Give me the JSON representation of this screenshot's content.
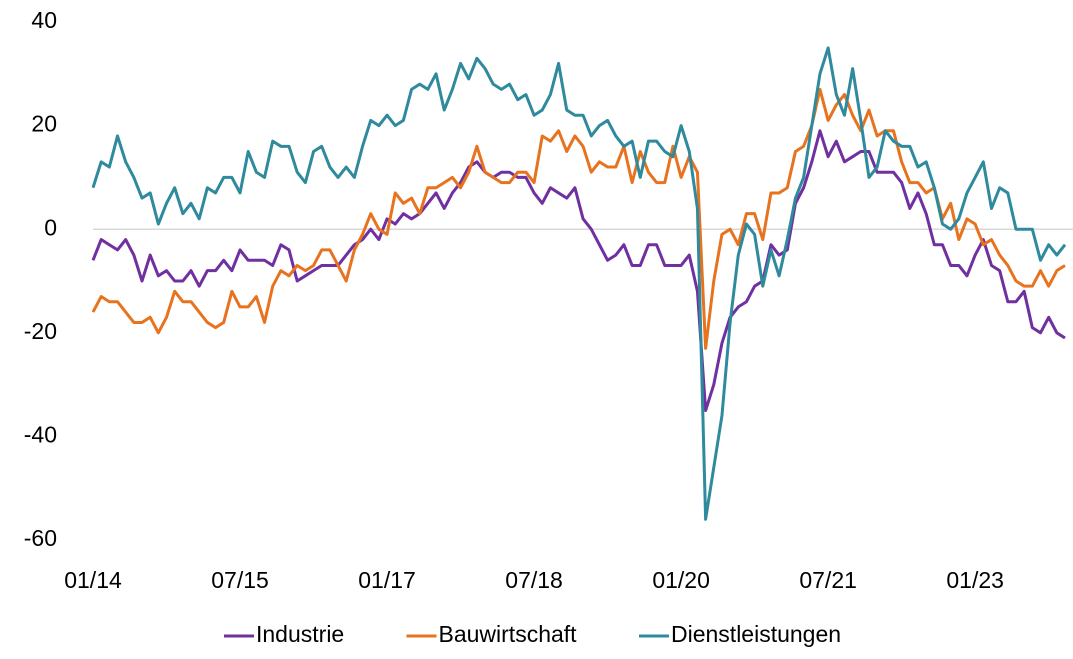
{
  "chart_data": {
    "type": "line",
    "categories": [
      "01/14",
      null,
      null,
      null,
      null,
      null,
      null,
      null,
      null,
      null,
      null,
      null,
      null,
      null,
      null,
      null,
      null,
      null,
      "07/15",
      null,
      null,
      null,
      null,
      null,
      null,
      null,
      null,
      null,
      null,
      null,
      null,
      null,
      null,
      null,
      null,
      null,
      "01/17",
      null,
      null,
      null,
      null,
      null,
      null,
      null,
      null,
      null,
      null,
      null,
      null,
      null,
      null,
      null,
      null,
      null,
      "07/18",
      null,
      null,
      null,
      null,
      null,
      null,
      null,
      null,
      null,
      null,
      null,
      null,
      null,
      null,
      null,
      null,
      null,
      "01/20",
      null,
      null,
      null,
      null,
      null,
      null,
      null,
      null,
      null,
      null,
      null,
      null,
      null,
      null,
      null,
      null,
      null,
      "07/21",
      null,
      null,
      null,
      null,
      null,
      null,
      null,
      null,
      null,
      null,
      null,
      null,
      null,
      null,
      null,
      null,
      null,
      "01/23",
      null,
      null,
      null,
      null,
      null,
      null,
      null,
      null,
      null,
      null,
      null
    ],
    "series": [
      {
        "name": "Industrie",
        "color": "#7030a0",
        "values": [
          -6,
          -2,
          -3,
          -4,
          -2,
          -5,
          -10,
          -5,
          -9,
          -8,
          -10,
          -10,
          -8,
          -11,
          -8,
          -8,
          -6,
          -8,
          -4,
          -6,
          -6,
          -6,
          -7,
          -3,
          -4,
          -10,
          -9,
          -8,
          -7,
          -7,
          -7,
          -5,
          -3,
          -2,
          0,
          -2,
          2,
          1,
          3,
          2,
          3,
          5,
          7,
          4,
          7,
          9,
          12,
          13,
          11,
          10,
          11,
          11,
          10,
          10,
          7,
          5,
          8,
          7,
          6,
          8,
          2,
          0,
          -3,
          -6,
          -5,
          -3,
          -7,
          -7,
          -3,
          -3,
          -7,
          -7,
          -7,
          -5,
          -12,
          -35,
          -30,
          -22,
          -17,
          -15,
          -14,
          -11,
          -10,
          -3,
          -5,
          -4,
          5,
          8,
          13,
          19,
          14,
          17,
          13,
          14,
          15,
          15,
          11,
          11,
          11,
          9,
          4,
          7,
          3,
          -3,
          -3,
          -7,
          -7,
          -9,
          -5,
          -2,
          -7,
          -8,
          -14,
          -14,
          -12,
          -19,
          -20,
          -17,
          -20,
          -21
        ]
      },
      {
        "name": "Bauwirtschaft",
        "color": "#e8731f",
        "values": [
          -16,
          -13,
          -14,
          -14,
          -16,
          -18,
          -18,
          -17,
          -20,
          -17,
          -12,
          -14,
          -14,
          -16,
          -18,
          -19,
          -18,
          -12,
          -15,
          -15,
          -13,
          -18,
          -11,
          -8,
          -9,
          -7,
          -8,
          -7,
          -4,
          -4,
          -7,
          -10,
          -4,
          -1,
          3,
          0,
          -1,
          7,
          5,
          6,
          3,
          8,
          8,
          9,
          10,
          8,
          11,
          16,
          11,
          10,
          9,
          9,
          11,
          11,
          9,
          18,
          17,
          19,
          15,
          18,
          16,
          11,
          13,
          12,
          12,
          16,
          9,
          15,
          11,
          9,
          9,
          16,
          10,
          14,
          11,
          -23,
          -10,
          -1,
          0,
          -3,
          3,
          3,
          -2,
          7,
          7,
          8,
          15,
          16,
          20,
          27,
          21,
          24,
          26,
          22,
          19,
          23,
          18,
          19,
          19,
          13,
          9,
          9,
          7,
          8,
          2,
          5,
          -2,
          2,
          1,
          -3,
          -2,
          -5,
          -7,
          -10,
          -11,
          -11,
          -8,
          -11,
          -8,
          -7
        ]
      },
      {
        "name": "Dienstleistungen",
        "color": "#2e8a9c",
        "values": [
          8,
          13,
          12,
          18,
          13,
          10,
          6,
          7,
          1,
          5,
          8,
          3,
          5,
          2,
          8,
          7,
          10,
          10,
          7,
          15,
          11,
          10,
          17,
          16,
          16,
          11,
          9,
          15,
          16,
          12,
          10,
          12,
          10,
          16,
          21,
          20,
          22,
          20,
          21,
          27,
          28,
          27,
          30,
          23,
          27,
          32,
          29,
          33,
          31,
          28,
          27,
          28,
          25,
          26,
          22,
          23,
          26,
          32,
          23,
          22,
          22,
          18,
          20,
          21,
          18,
          16,
          17,
          10,
          17,
          17,
          15,
          14,
          20,
          15,
          4,
          -56,
          -46,
          -36,
          -18,
          -5,
          1,
          -1,
          -11,
          -4,
          -9,
          -2,
          6,
          10,
          20,
          30,
          35,
          26,
          22,
          31,
          21,
          10,
          12,
          19,
          17,
          16,
          16,
          12,
          13,
          8,
          1,
          0,
          2,
          7,
          10,
          13,
          4,
          8,
          7,
          0,
          0,
          0,
          -6,
          -3,
          -5,
          -3
        ]
      }
    ],
    "ylim": [
      -60,
      40
    ],
    "yticks": [
      -60,
      -40,
      -20,
      0,
      20,
      40
    ],
    "legend": "bottom"
  }
}
